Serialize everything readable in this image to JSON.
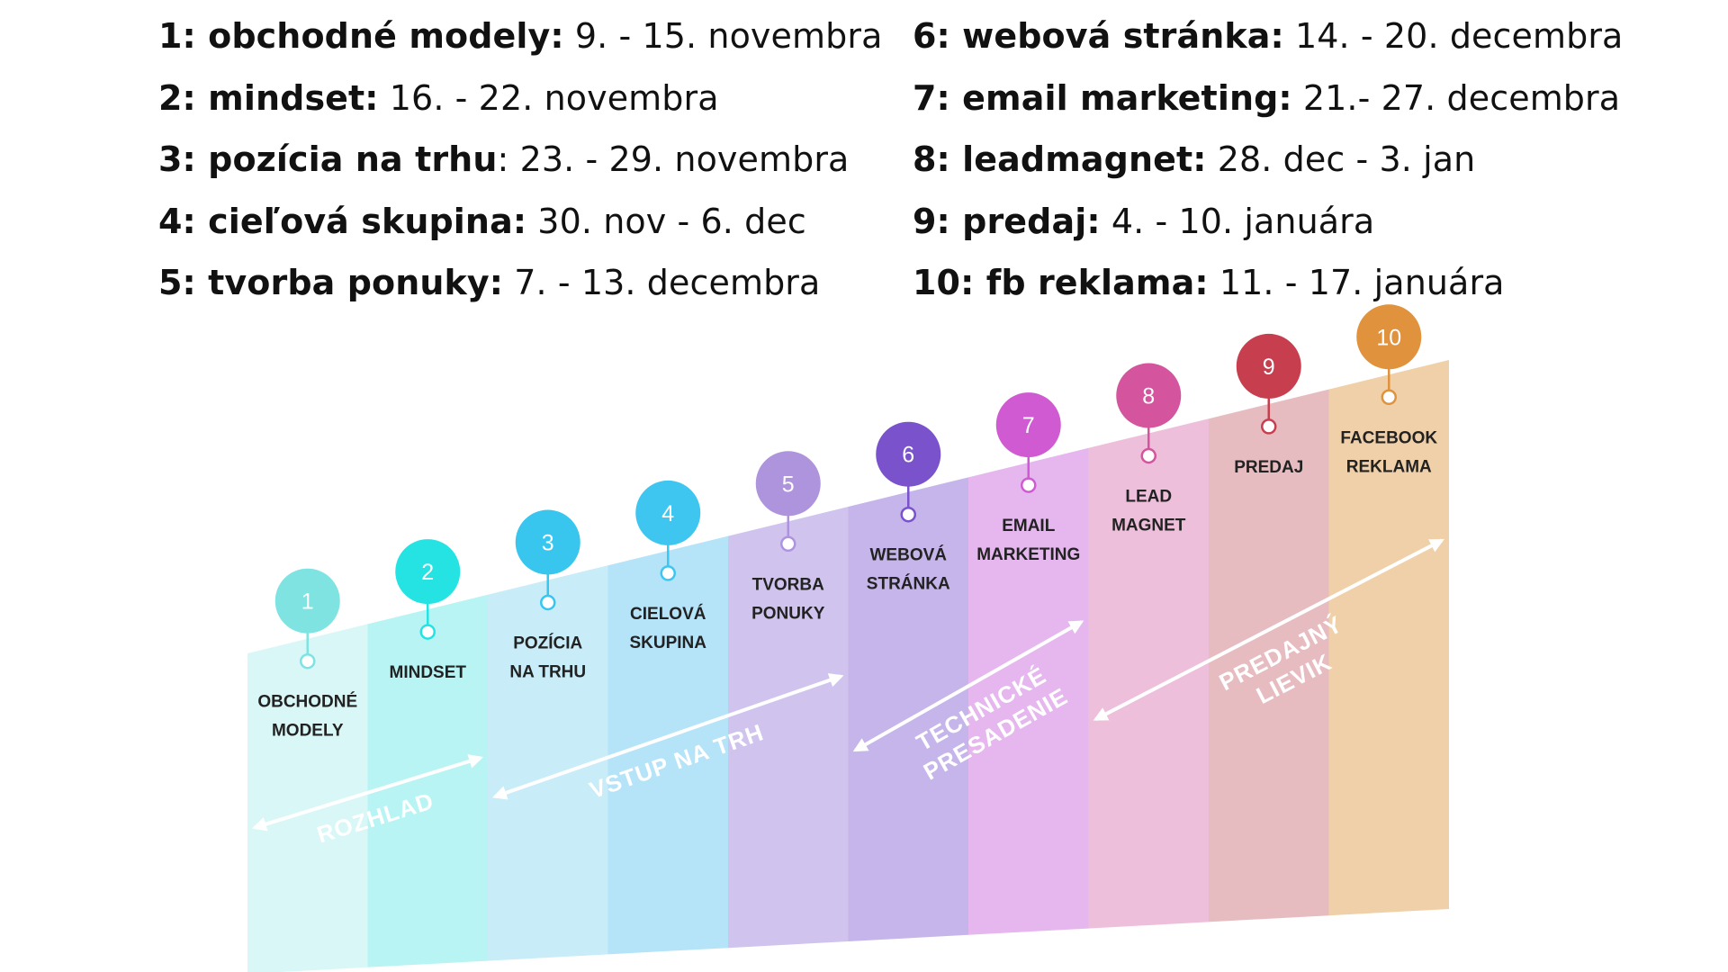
{
  "schedule": {
    "left": [
      {
        "title": "1: obchodné modely:",
        "dates": " 9. - 15. novembra"
      },
      {
        "title": "2: mindset:",
        "dates": " 16. - 22. novembra"
      },
      {
        "title": "3: pozícia na trhu",
        "dates": ": 23. - 29. novembra"
      },
      {
        "title": "4: cieľová skupina:",
        "dates": " 30. nov - 6. dec"
      },
      {
        "title": "5: tvorba ponuky:",
        "dates": " 7. - 13. decembra"
      }
    ],
    "right": [
      {
        "title": "6: webová stránka:",
        "dates": " 14. - 20. decembra"
      },
      {
        "title": "7: email marketing:",
        "dates": " 21.- 27. decembra"
      },
      {
        "title": "8: leadmagnet:",
        "dates": " 28. dec - 3. jan"
      },
      {
        "title": "9: predaj:",
        "dates": " 4. - 10. januára"
      },
      {
        "title": "10: fb reklama:",
        "dates": " 11. - 17. januára"
      }
    ]
  },
  "stages": [
    {
      "num": "1",
      "line1": "OBCHODNÉ",
      "line2": "MODELY",
      "circle": "#7fe3e2",
      "band": "#d9f7f7"
    },
    {
      "num": "2",
      "line1": "MINDSET",
      "line2": "",
      "circle": "#25e3e3",
      "band": "#b8f4f4"
    },
    {
      "num": "3",
      "line1": "POZÍCIA",
      "line2": "NA TRHU",
      "circle": "#38c6ee",
      "band": "#c8ecf8"
    },
    {
      "num": "4",
      "line1": "CIELOVÁ",
      "line2": "SKUPINA",
      "circle": "#3ec6f0",
      "band": "#b5e3f8"
    },
    {
      "num": "5",
      "line1": "TVORBA",
      "line2": "PONUKY",
      "circle": "#ae93dd",
      "band": "#d0c4ef"
    },
    {
      "num": "6",
      "line1": "WEBOVÁ",
      "line2": "STRÁNKA",
      "circle": "#7a52cc",
      "band": "#c6b5ea"
    },
    {
      "num": "7",
      "line1": "EMAIL",
      "line2": "MARKETING",
      "circle": "#cf5ad2",
      "band": "#e5b7ee"
    },
    {
      "num": "8",
      "line1": "LEAD",
      "line2": "MAGNET",
      "circle": "#d4549d",
      "band": "#eebfdb"
    },
    {
      "num": "9",
      "line1": "PREDAJ",
      "line2": "",
      "circle": "#c73e4e",
      "band": "#e7bcc1"
    },
    {
      "num": "10",
      "line1": "FACEBOOK",
      "line2": "REKLAMA",
      "circle": "#e0923d",
      "band": "#f0d0a8"
    }
  ],
  "phases": [
    {
      "line1": "ROZHLAD",
      "line2": ""
    },
    {
      "line1": "VSTUP NA TRH",
      "line2": ""
    },
    {
      "line1": "TECHNICKÉ",
      "line2": "PRESADENIE"
    },
    {
      "line1": "PREDAJNÝ",
      "line2": "LIEVIK"
    }
  ]
}
